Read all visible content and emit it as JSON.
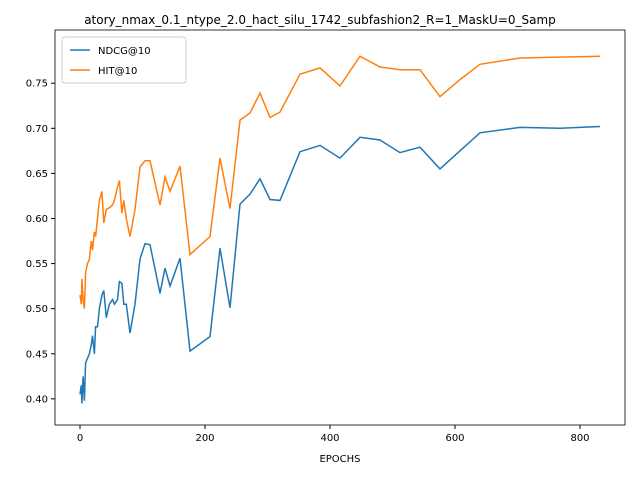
{
  "chart_data": {
    "type": "line",
    "title": "atory_nmax_0.1_ntype_2.0_hact_silu_1742_subfashion2_R=1_MaskU=0_Samp",
    "xlabel": "EPOCHS",
    "x": [
      0,
      2,
      3,
      5,
      7,
      9,
      12,
      15,
      18,
      20,
      23,
      25,
      28,
      31,
      35,
      38,
      42,
      47,
      52,
      55,
      60,
      63,
      67,
      70,
      74,
      80,
      88,
      96,
      104,
      112,
      128,
      136,
      144,
      160,
      176,
      208,
      224,
      240,
      256,
      272,
      288,
      304,
      320,
      352,
      384,
      416,
      448,
      480,
      512,
      544,
      576,
      608,
      640,
      704,
      768,
      832
    ],
    "series": [
      {
        "name": "NDCG@10",
        "color": "#1f77b4",
        "values": [
          0.405,
          0.415,
          0.395,
          0.425,
          0.398,
          0.44,
          0.445,
          0.45,
          0.46,
          0.47,
          0.45,
          0.48,
          0.48,
          0.5,
          0.515,
          0.52,
          0.49,
          0.505,
          0.51,
          0.505,
          0.51,
          0.53,
          0.528,
          0.505,
          0.505,
          0.473,
          0.505,
          0.555,
          0.572,
          0.571,
          0.517,
          0.545,
          0.525,
          0.556,
          0.453,
          0.469,
          0.567,
          0.501,
          0.616,
          0.627,
          0.644,
          0.621,
          0.62,
          0.674,
          0.681,
          0.667,
          0.69,
          0.687,
          0.673,
          0.679,
          0.655,
          0.675,
          0.695,
          0.701,
          0.7,
          0.702
        ]
      },
      {
        "name": "HIT@10",
        "color": "#ff7f0e",
        "values": [
          0.515,
          0.505,
          0.533,
          0.51,
          0.5,
          0.54,
          0.55,
          0.555,
          0.575,
          0.565,
          0.585,
          0.58,
          0.6,
          0.62,
          0.63,
          0.595,
          0.61,
          0.612,
          0.615,
          0.62,
          0.635,
          0.642,
          0.606,
          0.62,
          0.6,
          0.58,
          0.61,
          0.657,
          0.664,
          0.664,
          0.615,
          0.646,
          0.63,
          0.658,
          0.56,
          0.58,
          0.667,
          0.611,
          0.709,
          0.717,
          0.739,
          0.712,
          0.718,
          0.76,
          0.767,
          0.747,
          0.78,
          0.768,
          0.765,
          0.765,
          0.735,
          0.754,
          0.771,
          0.778,
          0.779,
          0.78
        ]
      }
    ],
    "xlim": [
      -40,
      872
    ],
    "ylim": [
      0.371,
      0.809
    ],
    "xticks": [
      0,
      200,
      400,
      600,
      800
    ],
    "yticks": [
      {
        "value": 0.4,
        "label": "0.40"
      },
      {
        "value": 0.45,
        "label": "0.45"
      },
      {
        "value": 0.5,
        "label": "0.50"
      },
      {
        "value": 0.55,
        "label": "0.55"
      },
      {
        "value": 0.6,
        "label": "0.60"
      },
      {
        "value": 0.65,
        "label": "0.65"
      },
      {
        "value": 0.7,
        "label": "0.70"
      },
      {
        "value": 0.75,
        "label": "0.75"
      }
    ],
    "legend": "upper left"
  }
}
